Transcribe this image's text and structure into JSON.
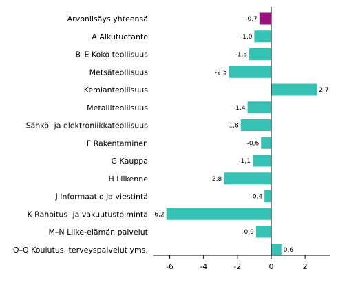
{
  "chart_data": {
    "type": "bar",
    "orientation": "horizontal",
    "categories": [
      "Arvonlisäys yhteensä",
      "A Alkutuotanto",
      "B–E Koko teollisuus",
      "Metsäteollisuus",
      "Kemianteollisuus",
      "Metalliteollisuus",
      "Sähkö- ja elektroniikkateollisuus",
      "F Rakentaminen",
      "G Kauppa",
      "H Liikenne",
      "J Informaatio ja viestintä",
      "K Rahoitus- ja vakuutustoiminta",
      "M–N Liike-elämän palvelut",
      "O–Q Koulutus, terveyspalvelut yms."
    ],
    "values": [
      -0.7,
      -1.0,
      -1.3,
      -2.5,
      2.7,
      -1.4,
      -1.8,
      -0.6,
      -1.1,
      -2.8,
      -0.4,
      -6.2,
      -0.9,
      0.6
    ],
    "value_labels": [
      "-0,7",
      "-1,0",
      "-1,3",
      "-2,5",
      "2,7",
      "-1,4",
      "-1,8",
      "-0,6",
      "-1,1",
      "-2,8",
      "-0,4",
      "-6,2",
      "-0,9",
      "0,6"
    ],
    "xlim": [
      -7,
      3.5
    ],
    "xticks": [
      -6,
      -4,
      -2,
      0,
      2
    ],
    "xtick_labels": [
      "-6",
      "-4",
      "-2",
      "0",
      "2"
    ],
    "highlight_index": 0,
    "colors": {
      "highlight": "#9b0f7e",
      "bar": "#35c2b5",
      "axis": "#000000"
    },
    "grid": false,
    "legend": "none",
    "title": "",
    "xlabel": "",
    "ylabel": ""
  }
}
